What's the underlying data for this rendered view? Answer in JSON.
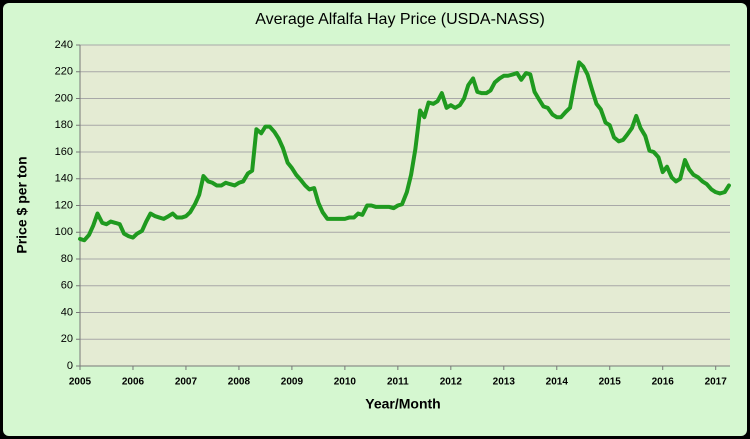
{
  "chart_data": {
    "type": "line",
    "title": "Average Alfalfa Hay Price (USDA-NASS)",
    "xlabel": "Year/Month",
    "ylabel": "Price $ per ton",
    "x": [
      2005,
      2005.08,
      2005.17,
      2005.25,
      2005.33,
      2005.42,
      2005.5,
      2005.58,
      2005.67,
      2005.75,
      2005.83,
      2005.92,
      2006,
      2006.08,
      2006.17,
      2006.25,
      2006.33,
      2006.42,
      2006.5,
      2006.58,
      2006.67,
      2006.75,
      2006.83,
      2006.92,
      2007,
      2007.08,
      2007.17,
      2007.25,
      2007.33,
      2007.42,
      2007.5,
      2007.58,
      2007.67,
      2007.75,
      2007.83,
      2007.92,
      2008,
      2008.08,
      2008.17,
      2008.25,
      2008.33,
      2008.42,
      2008.5,
      2008.58,
      2008.67,
      2008.75,
      2008.83,
      2008.92,
      2009,
      2009.08,
      2009.17,
      2009.25,
      2009.33,
      2009.42,
      2009.5,
      2009.58,
      2009.67,
      2009.75,
      2009.83,
      2009.92,
      2010,
      2010.08,
      2010.17,
      2010.25,
      2010.33,
      2010.42,
      2010.5,
      2010.58,
      2010.67,
      2010.75,
      2010.83,
      2010.92,
      2011,
      2011.08,
      2011.17,
      2011.25,
      2011.33,
      2011.42,
      2011.5,
      2011.58,
      2011.67,
      2011.75,
      2011.83,
      2011.92,
      2012,
      2012.08,
      2012.17,
      2012.25,
      2012.33,
      2012.42,
      2012.5,
      2012.58,
      2012.67,
      2012.75,
      2012.83,
      2012.92,
      2013,
      2013.08,
      2013.17,
      2013.25,
      2013.33,
      2013.42,
      2013.5,
      2013.58,
      2013.67,
      2013.75,
      2013.83,
      2013.92,
      2014,
      2014.08,
      2014.17,
      2014.25,
      2014.33,
      2014.42,
      2014.5,
      2014.58,
      2014.67,
      2014.75,
      2014.83,
      2014.92,
      2015,
      2015.08,
      2015.17,
      2015.25,
      2015.33,
      2015.42,
      2015.5,
      2015.58,
      2015.67,
      2015.75,
      2015.83,
      2015.92,
      2016,
      2016.08,
      2016.17,
      2016.25,
      2016.33,
      2016.42,
      2016.5,
      2016.58,
      2016.67,
      2016.75,
      2016.83,
      2016.92,
      2017,
      2017.08,
      2017.17,
      2017.25
    ],
    "series": [
      {
        "name": "Average Alfalfa Hay Price",
        "color": "#1f9a1f",
        "values": [
          95,
          94,
          98,
          105,
          114,
          107,
          106,
          108,
          107,
          106,
          99,
          97,
          96,
          99,
          101,
          108,
          114,
          112,
          111,
          110,
          112,
          114,
          111,
          111,
          112,
          115,
          121,
          128,
          142,
          138,
          137,
          135,
          135,
          137,
          136,
          135,
          137,
          138,
          144,
          146,
          177,
          174,
          179,
          179,
          175,
          170,
          163,
          152,
          148,
          143,
          139,
          135,
          132,
          133,
          122,
          115,
          110,
          110,
          110,
          110,
          110,
          111,
          111,
          114,
          113,
          120,
          120,
          119,
          119,
          119,
          119,
          118,
          120,
          121,
          130,
          143,
          162,
          191,
          186,
          197,
          196,
          198,
          204,
          193,
          195,
          193,
          195,
          200,
          210,
          215,
          205,
          204,
          204,
          206,
          212,
          215,
          217,
          217,
          218,
          219,
          214,
          219,
          218,
          205,
          199,
          194,
          193,
          188,
          186,
          186,
          190,
          193,
          210,
          227,
          224,
          218,
          206,
          196,
          192,
          182,
          180,
          171,
          168,
          169,
          173,
          178,
          187,
          178,
          172,
          161,
          160,
          156,
          145,
          149,
          141,
          138,
          140,
          154,
          147,
          143,
          141,
          138,
          136,
          132,
          130,
          129,
          130,
          135
        ]
      }
    ],
    "xlim": [
      2005,
      2017.27
    ],
    "xticks": [
      2005,
      2006,
      2007,
      2008,
      2009,
      2010,
      2011,
      2012,
      2013,
      2014,
      2015,
      2016,
      2017
    ],
    "ylim": [
      0,
      240
    ],
    "yticks": [
      0,
      20,
      40,
      60,
      80,
      100,
      120,
      140,
      160,
      180,
      200,
      220,
      240
    ],
    "grid": true
  }
}
